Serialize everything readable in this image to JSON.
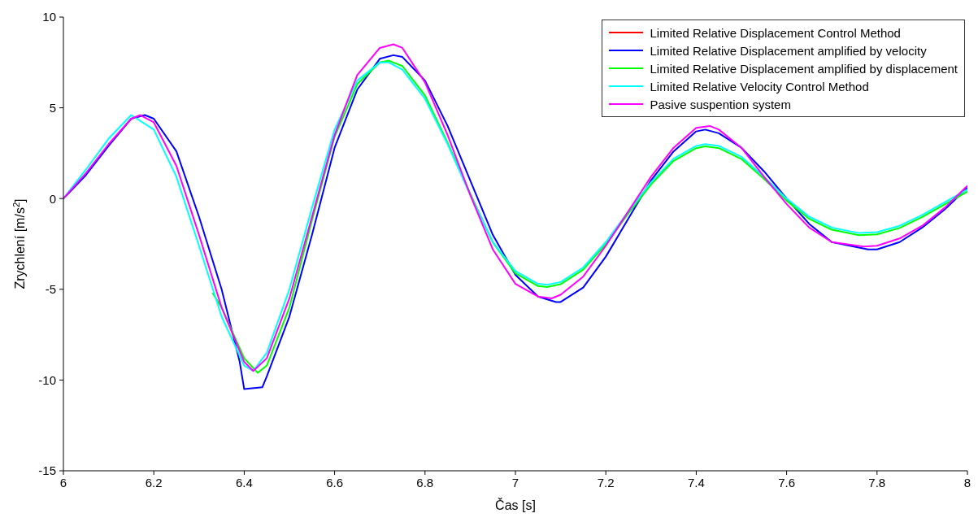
{
  "chart_data": {
    "type": "line",
    "xlabel": "Čas [s]",
    "ylabel": "Zrychlení [m/s$^{2}$]",
    "xlim": [
      6,
      8
    ],
    "xticks": [
      6,
      6.2,
      6.4,
      6.6,
      6.8,
      7,
      7.2,
      7.4,
      7.6,
      7.8,
      8
    ],
    "ylim": [
      -15,
      10
    ],
    "yticks": [
      -15,
      -10,
      -5,
      0,
      5,
      10
    ],
    "grid": false,
    "legend": "top right",
    "series": [
      {
        "name": "Limited Relative Displacement Control Method",
        "color": "#ff0000"
      },
      {
        "name": "Limited Relative Displacement amplified by velocity",
        "color": "#0000ff",
        "x": [
          6.0,
          6.05,
          6.1,
          6.15,
          6.18,
          6.2,
          6.25,
          6.3,
          6.35,
          6.39,
          6.4,
          6.44,
          6.45,
          6.5,
          6.55,
          6.6,
          6.65,
          6.7,
          6.73,
          6.75,
          6.8,
          6.85,
          6.9,
          6.95,
          7.0,
          7.05,
          7.09,
          7.1,
          7.15,
          7.2,
          7.25,
          7.3,
          7.35,
          7.4,
          7.42,
          7.45,
          7.5,
          7.55,
          7.6,
          7.65,
          7.7,
          7.78,
          7.8,
          7.85,
          7.9,
          7.95,
          8.0
        ],
        "values": [
          0,
          1.3,
          2.9,
          4.4,
          4.6,
          4.4,
          2.6,
          -1.0,
          -5.0,
          -9.0,
          -10.5,
          -10.4,
          -9.8,
          -6.5,
          -2.0,
          2.8,
          6.0,
          7.7,
          7.9,
          7.8,
          6.5,
          4.0,
          1.0,
          -2.0,
          -4.2,
          -5.4,
          -5.7,
          -5.7,
          -4.9,
          -3.2,
          -1.1,
          1.0,
          2.6,
          3.7,
          3.8,
          3.6,
          2.8,
          1.5,
          0,
          -1.4,
          -2.4,
          -2.8,
          -2.8,
          -2.4,
          -1.6,
          -0.6,
          0.6
        ]
      },
      {
        "name": "Limited Relative Displacement amplified by displacement",
        "color": "#00ff00",
        "x": [
          6.33,
          6.35,
          6.4,
          6.43,
          6.45,
          6.5,
          6.55,
          6.6,
          6.65,
          6.7,
          6.72,
          6.75,
          6.8,
          6.85,
          6.9,
          6.95,
          7.0,
          7.05,
          7.07,
          7.1,
          7.15,
          7.2,
          7.25,
          7.3,
          7.35,
          7.4,
          7.42,
          7.45,
          7.5,
          7.55,
          7.6,
          7.65,
          7.7,
          7.76,
          7.8,
          7.85,
          7.9,
          7.95,
          8.0
        ],
        "values": [
          -5.2,
          -6.0,
          -8.8,
          -9.6,
          -9.2,
          -6.0,
          -1.2,
          3.4,
          6.3,
          7.5,
          7.6,
          7.3,
          5.68,
          3.08,
          0.28,
          -2.42,
          -4.12,
          -4.82,
          -4.87,
          -4.72,
          -3.92,
          -2.52,
          -0.82,
          0.78,
          2.08,
          2.78,
          2.88,
          2.78,
          2.18,
          1.08,
          -0.12,
          -1.12,
          -1.72,
          -2.02,
          -1.97,
          -1.62,
          -1.02,
          -0.32,
          0.38
        ]
      },
      {
        "name": "Limited Relative Velocity Control Method",
        "color": "#00ffff",
        "x": [
          6.0,
          6.05,
          6.1,
          6.15,
          6.2,
          6.25,
          6.3,
          6.35,
          6.4,
          6.42,
          6.45,
          6.5,
          6.55,
          6.6,
          6.65,
          6.7,
          6.72,
          6.75,
          6.8,
          6.85,
          6.9,
          6.95,
          7.0,
          7.05,
          7.07,
          7.1,
          7.15,
          7.2,
          7.25,
          7.3,
          7.35,
          7.4,
          7.42,
          7.45,
          7.5,
          7.55,
          7.6,
          7.65,
          7.7,
          7.76,
          7.8,
          7.85,
          7.9,
          7.95,
          8.0
        ],
        "values": [
          0,
          1.6,
          3.3,
          4.6,
          3.8,
          1.2,
          -2.6,
          -6.5,
          -9.2,
          -9.5,
          -8.5,
          -5.0,
          -0.5,
          3.8,
          6.5,
          7.5,
          7.5,
          7.1,
          5.5,
          3.0,
          0.2,
          -2.4,
          -4.0,
          -4.7,
          -4.75,
          -4.6,
          -3.8,
          -2.4,
          -0.7,
          0.9,
          2.2,
          2.9,
          3.0,
          2.9,
          2.3,
          1.2,
          0,
          -1.0,
          -1.6,
          -1.9,
          -1.85,
          -1.5,
          -0.9,
          -0.2,
          0.5
        ]
      },
      {
        "name": "Pasive suspention system",
        "color": "#ff00ff",
        "x": [
          6.0,
          6.05,
          6.1,
          6.15,
          6.17,
          6.2,
          6.25,
          6.3,
          6.35,
          6.4,
          6.42,
          6.45,
          6.5,
          6.55,
          6.6,
          6.65,
          6.7,
          6.73,
          6.75,
          6.8,
          6.85,
          6.9,
          6.95,
          7.0,
          7.05,
          7.08,
          7.1,
          7.15,
          7.2,
          7.25,
          7.3,
          7.35,
          7.4,
          7.43,
          7.45,
          7.5,
          7.55,
          7.6,
          7.65,
          7.7,
          7.77,
          7.8,
          7.85,
          7.9,
          7.95,
          8.0
        ],
        "values": [
          0,
          1.4,
          3.0,
          4.4,
          4.6,
          4.2,
          1.8,
          -2.0,
          -6.0,
          -9.0,
          -9.5,
          -8.8,
          -5.5,
          -1.0,
          3.5,
          6.8,
          8.3,
          8.5,
          8.3,
          6.4,
          3.5,
          0.2,
          -2.8,
          -4.7,
          -5.4,
          -5.5,
          -5.3,
          -4.3,
          -2.6,
          -0.7,
          1.2,
          2.8,
          3.9,
          4.0,
          3.8,
          2.8,
          1.2,
          -0.3,
          -1.6,
          -2.4,
          -2.65,
          -2.6,
          -2.2,
          -1.5,
          -0.5,
          0.7
        ]
      }
    ]
  }
}
